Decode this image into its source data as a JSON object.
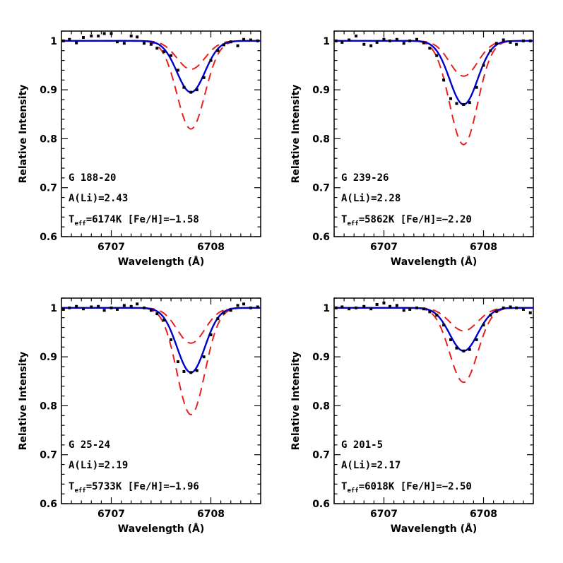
{
  "chart_data": [
    {
      "type": "line",
      "xlabel": "Wavelength (Å)",
      "ylabel": "Relative Intensity",
      "xlim": [
        6706.5,
        6708.5
      ],
      "ylim": [
        0.6,
        1.02
      ],
      "xticks": [
        6707,
        6708
      ],
      "yticks": [
        0.6,
        0.7,
        0.8,
        0.9,
        1
      ],
      "annotations": {
        "star": "G 188-20",
        "ali": "A(Li)=2.43",
        "teff_prefix": "T",
        "teff_sub": "eff",
        "teff_rest": "=6174K [Fe/H]=−1.58"
      },
      "series": [
        {
          "role": "best-fit",
          "color": "#0000cc",
          "style": "solid",
          "line_center": 6707.8,
          "min_intensity": 0.895,
          "fwhm": 0.33
        },
        {
          "role": "upper-bound",
          "color": "#e62020",
          "style": "dashed",
          "line_center": 6707.8,
          "min_intensity": 0.942,
          "fwhm": 0.33
        },
        {
          "role": "lower-bound",
          "color": "#e62020",
          "style": "dashed",
          "line_center": 6707.8,
          "min_intensity": 0.82,
          "fwhm": 0.33
        },
        {
          "role": "observed",
          "color": "#000000",
          "style": "points",
          "x": [
            6706.52,
            6706.58,
            6706.65,
            6706.72,
            6706.8,
            6706.87,
            6706.93,
            6707.0,
            6707.06,
            6707.13,
            6707.2,
            6707.26,
            6707.33,
            6707.4,
            6707.46,
            6707.53,
            6707.6,
            6707.67,
            6707.73,
            6707.8,
            6707.86,
            6707.93,
            6708.0,
            6708.07,
            6708.13,
            6708.2,
            6708.27,
            6708.33,
            6708.4,
            6708.47
          ],
          "y": [
            1.0,
            1.003,
            0.996,
            1.007,
            1.01,
            1.01,
            1.015,
            1.015,
            0.998,
            0.995,
            1.01,
            1.008,
            0.995,
            0.993,
            0.985,
            0.978,
            0.97,
            0.94,
            0.905,
            0.895,
            0.9,
            0.925,
            0.96,
            0.98,
            0.992,
            0.998,
            0.99,
            1.003,
            1.002,
            1.0
          ]
        }
      ]
    },
    {
      "type": "line",
      "xlabel": "Wavelength (Å)",
      "ylabel": "Relative Intensity",
      "xlim": [
        6706.5,
        6708.5
      ],
      "ylim": [
        0.6,
        1.02
      ],
      "xticks": [
        6707,
        6708
      ],
      "yticks": [
        0.6,
        0.7,
        0.8,
        0.9,
        1
      ],
      "annotations": {
        "star": "G 239-26",
        "ali": "A(Li)=2.28",
        "teff_prefix": "T",
        "teff_sub": "eff",
        "teff_rest": "=5862K [Fe/H]=−2.20"
      },
      "series": [
        {
          "role": "best-fit",
          "color": "#0000cc",
          "style": "solid",
          "line_center": 6707.8,
          "min_intensity": 0.87,
          "fwhm": 0.33
        },
        {
          "role": "upper-bound",
          "color": "#e62020",
          "style": "dashed",
          "line_center": 6707.8,
          "min_intensity": 0.928,
          "fwhm": 0.33
        },
        {
          "role": "lower-bound",
          "color": "#e62020",
          "style": "dashed",
          "line_center": 6707.8,
          "min_intensity": 0.788,
          "fwhm": 0.33
        },
        {
          "role": "observed",
          "color": "#000000",
          "style": "points",
          "x": [
            6706.52,
            6706.58,
            6706.65,
            6706.72,
            6706.8,
            6706.87,
            6706.93,
            6707.0,
            6707.06,
            6707.13,
            6707.2,
            6707.26,
            6707.33,
            6707.4,
            6707.46,
            6707.53,
            6707.6,
            6707.67,
            6707.73,
            6707.8,
            6707.86,
            6707.93,
            6708.0,
            6708.07,
            6708.13,
            6708.2,
            6708.27,
            6708.33,
            6708.4,
            6708.47
          ],
          "y": [
            1.0,
            0.997,
            1.002,
            1.01,
            0.993,
            0.99,
            0.997,
            1.003,
            1.0,
            1.003,
            0.995,
            1.0,
            1.003,
            0.996,
            0.985,
            0.97,
            0.92,
            0.882,
            0.872,
            0.87,
            0.874,
            0.905,
            0.95,
            0.98,
            0.995,
            1.002,
            0.997,
            0.993,
            1.0,
            1.0
          ]
        }
      ]
    },
    {
      "type": "line",
      "xlabel": "Wavelength (Å)",
      "ylabel": "Relative Intensity",
      "xlim": [
        6706.5,
        6708.5
      ],
      "ylim": [
        0.6,
        1.02
      ],
      "xticks": [
        6707,
        6708
      ],
      "yticks": [
        0.6,
        0.7,
        0.8,
        0.9,
        1
      ],
      "annotations": {
        "star": "G 25-24",
        "ali": "A(Li)=2.19",
        "teff_prefix": "T",
        "teff_sub": "eff",
        "teff_rest": "=5733K [Fe/H]=−1.96"
      },
      "series": [
        {
          "role": "best-fit",
          "color": "#0000cc",
          "style": "solid",
          "line_center": 6707.8,
          "min_intensity": 0.868,
          "fwhm": 0.33
        },
        {
          "role": "upper-bound",
          "color": "#e62020",
          "style": "dashed",
          "line_center": 6707.8,
          "min_intensity": 0.928,
          "fwhm": 0.33
        },
        {
          "role": "lower-bound",
          "color": "#e62020",
          "style": "dashed",
          "line_center": 6707.8,
          "min_intensity": 0.782,
          "fwhm": 0.33
        },
        {
          "role": "observed",
          "color": "#000000",
          "style": "points",
          "x": [
            6706.52,
            6706.58,
            6706.65,
            6706.72,
            6706.8,
            6706.87,
            6706.93,
            6707.0,
            6707.06,
            6707.13,
            6707.2,
            6707.26,
            6707.33,
            6707.4,
            6707.46,
            6707.53,
            6707.6,
            6707.67,
            6707.73,
            6707.8,
            6707.86,
            6707.93,
            6708.0,
            6708.07,
            6708.13,
            6708.2,
            6708.27,
            6708.33,
            6708.4,
            6708.47
          ],
          "y": [
            0.997,
            1.0,
            1.003,
            0.998,
            1.002,
            1.003,
            0.995,
            1.0,
            0.997,
            1.005,
            1.003,
            1.008,
            1.0,
            0.995,
            0.988,
            0.975,
            0.935,
            0.89,
            0.87,
            0.868,
            0.872,
            0.9,
            0.945,
            0.978,
            0.99,
            0.995,
            1.005,
            1.008,
            1.0,
            1.002
          ]
        }
      ]
    },
    {
      "type": "line",
      "xlabel": "Wavelength (Å)",
      "ylabel": "Relative Intensity",
      "xlim": [
        6706.5,
        6708.5
      ],
      "ylim": [
        0.6,
        1.02
      ],
      "xticks": [
        6707,
        6708
      ],
      "yticks": [
        0.6,
        0.7,
        0.8,
        0.9,
        1
      ],
      "annotations": {
        "star": "G 201-5",
        "ali": "A(Li)=2.17",
        "teff_prefix": "T",
        "teff_sub": "eff",
        "teff_rest": "=6018K [Fe/H]=−2.50"
      },
      "series": [
        {
          "role": "best-fit",
          "color": "#0000cc",
          "style": "solid",
          "line_center": 6707.8,
          "min_intensity": 0.912,
          "fwhm": 0.33
        },
        {
          "role": "upper-bound",
          "color": "#e62020",
          "style": "dashed",
          "line_center": 6707.8,
          "min_intensity": 0.953,
          "fwhm": 0.33
        },
        {
          "role": "lower-bound",
          "color": "#e62020",
          "style": "dashed",
          "line_center": 6707.8,
          "min_intensity": 0.848,
          "fwhm": 0.33
        },
        {
          "role": "observed",
          "color": "#000000",
          "style": "points",
          "x": [
            6706.52,
            6706.58,
            6706.65,
            6706.72,
            6706.8,
            6706.87,
            6706.93,
            6707.0,
            6707.06,
            6707.13,
            6707.2,
            6707.26,
            6707.33,
            6707.4,
            6707.46,
            6707.53,
            6707.6,
            6707.67,
            6707.73,
            6707.8,
            6707.86,
            6707.93,
            6708.0,
            6708.07,
            6708.13,
            6708.2,
            6708.27,
            6708.33,
            6708.4,
            6708.47
          ],
          "y": [
            1.0,
            1.002,
            0.998,
            1.0,
            1.003,
            0.998,
            1.007,
            1.01,
            1.003,
            1.005,
            0.995,
            0.997,
            1.0,
            0.998,
            0.992,
            0.985,
            0.965,
            0.935,
            0.918,
            0.912,
            0.915,
            0.935,
            0.965,
            0.985,
            0.993,
            1.0,
            1.002,
            1.0,
            0.997,
            0.99
          ]
        }
      ]
    }
  ]
}
